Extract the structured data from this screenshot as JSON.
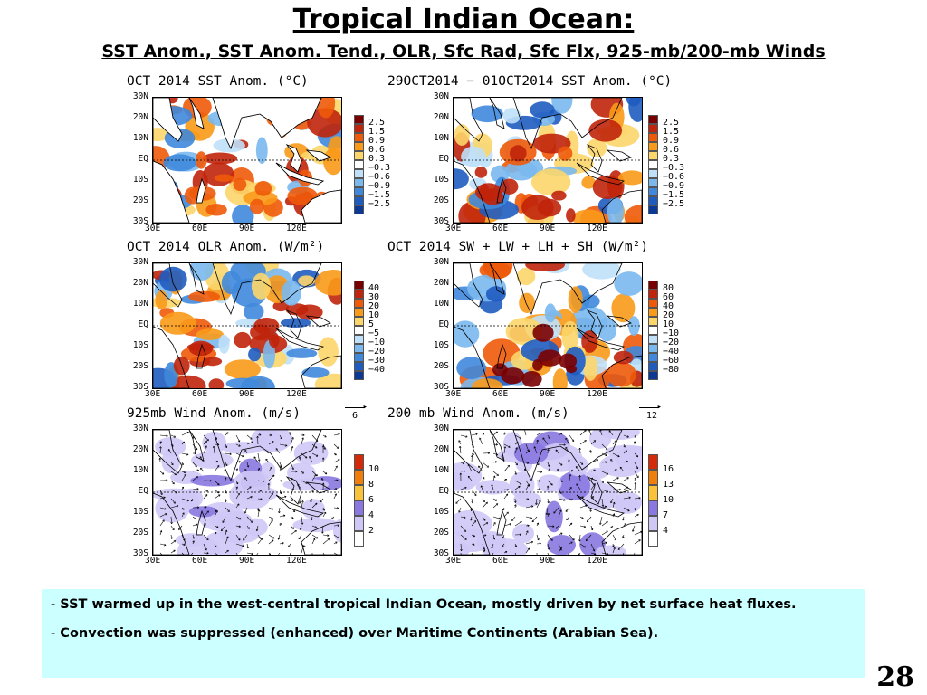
{
  "title": "Tropical Indian Ocean:",
  "subtitle": "SST Anom., SST Anom. Tend., OLR, Sfc Rad, Sfc Flx, 925-mb/200-mb Winds",
  "lat_labels": [
    "30N",
    "20N",
    "10N",
    "EQ",
    "10S",
    "20S",
    "30S"
  ],
  "lon_labels": [
    "30E",
    "60E",
    "90E",
    "120E"
  ],
  "panels": [
    {
      "id": "sst",
      "title": "OCT 2014 SST Anom. (°C)",
      "levels": [
        "2.5",
        "1.5",
        "0.9",
        "0.6",
        "0.3",
        "−0.3",
        "−0.6",
        "−0.9",
        "−1.5",
        "−2.5"
      ]
    },
    {
      "id": "sst-tend",
      "title": "29OCT2014 − 01OCT2014 SST Anom. (°C)",
      "levels": [
        "2.5",
        "1.5",
        "0.9",
        "0.6",
        "0.3",
        "−0.3",
        "−0.6",
        "−0.9",
        "−1.5",
        "−2.5"
      ]
    },
    {
      "id": "olr",
      "title": "OCT 2014 OLR Anom. (W/m²)",
      "levels": [
        "40",
        "30",
        "20",
        "10",
        "5",
        "−5",
        "−10",
        "−20",
        "−30",
        "−40"
      ]
    },
    {
      "id": "flux",
      "title": "OCT 2014 SW + LW + LH + SH (W/m²)",
      "levels": [
        "80",
        "60",
        "40",
        "20",
        "10",
        "−10",
        "−20",
        "−40",
        "−60",
        "−80"
      ]
    },
    {
      "id": "wind925",
      "title": "925mb Wind Anom. (m/s)",
      "ref_vector": "6",
      "levels": [
        "10",
        "8",
        "6",
        "4",
        "2"
      ]
    },
    {
      "id": "wind200",
      "title": "200 mb Wind Anom. (m/s)",
      "ref_vector": "12",
      "levels": [
        "16",
        "13",
        "10",
        "7",
        "4"
      ]
    }
  ],
  "colors": {
    "div": [
      "#7a0000",
      "#c0240a",
      "#ee5a0a",
      "#f99a1a",
      "#fcd66a",
      "#ffffff",
      "#bfe0f8",
      "#7ab8ee",
      "#3f88dc",
      "#1f5cc0",
      "#0a3a96"
    ],
    "wind": [
      "#d42a0a",
      "#f07e0a",
      "#f8c23a",
      "#8a78e0",
      "#cfc8f6",
      "#ffffff"
    ]
  },
  "notes": [
    {
      "bullet": "-",
      "text": "SST warmed up in the west-central tropical Indian Ocean, mostly driven by net surface heat fluxes."
    },
    {
      "bullet": "-",
      "text": "Convection was suppressed (enhanced) over Maritime Continents (Arabian Sea)."
    }
  ],
  "page_number": "28"
}
